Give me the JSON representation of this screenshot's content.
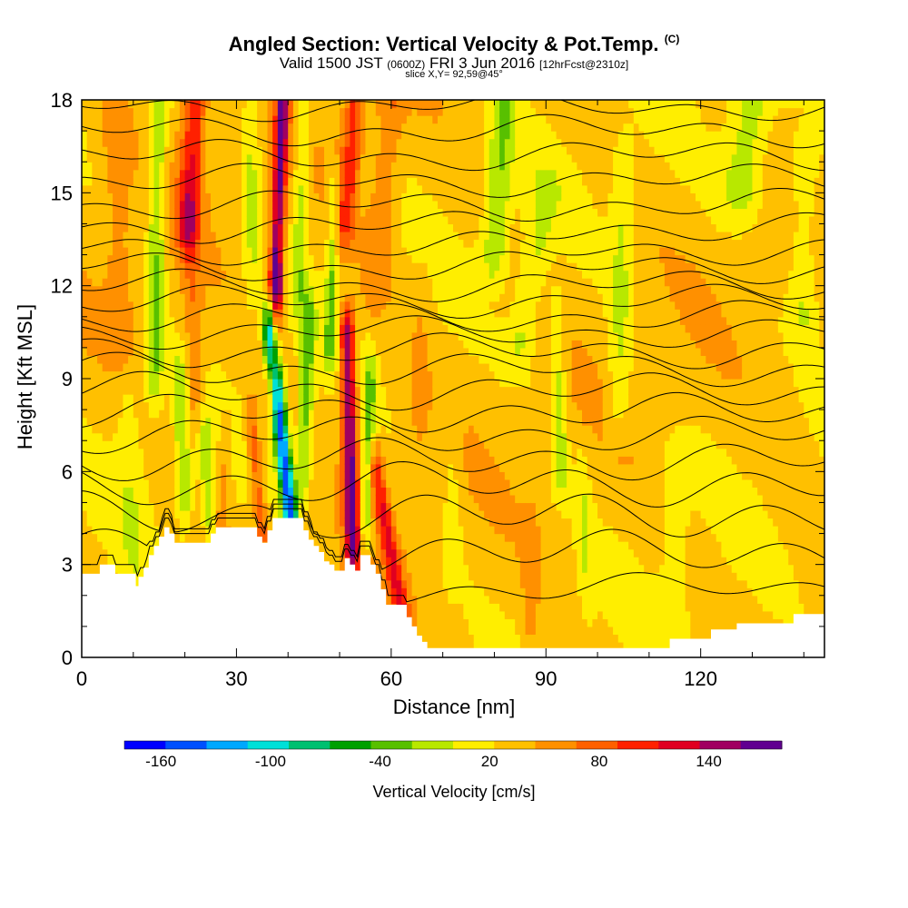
{
  "header": {
    "title_main": "Angled Section: Vertical Velocity & Pot.Temp.",
    "title_units": "(C)",
    "valid_prefix": "Valid 1500 JST",
    "valid_utc": "(0600Z)",
    "valid_date": "FRI 3 Jun 2016",
    "forecast_info": "[12hrFcst@2310z]",
    "slice_info": "slice X,Y= 92,59@45°"
  },
  "chart_data": {
    "type": "heatmap",
    "title": "Angled Section: Vertical Velocity & Pot.Temp.",
    "xlabel": "Distance [nm]",
    "ylabel": "Height [Kft MSL]",
    "xlim": [
      0,
      144
    ],
    "ylim": [
      0,
      18
    ],
    "x_ticks": [
      0,
      30,
      60,
      90,
      120
    ],
    "y_ticks": [
      0,
      3,
      6,
      9,
      12,
      15,
      18
    ],
    "colorbar": {
      "label": "Vertical Velocity [cm/s]",
      "range": [
        -180,
        180
      ],
      "step": 20,
      "tick_values": [
        -160,
        -100,
        -40,
        20,
        80,
        140
      ],
      "colors": [
        "#0000ff",
        "#0050ff",
        "#00a8ff",
        "#00e0d8",
        "#00c070",
        "#00a000",
        "#58c000",
        "#b8e800",
        "#ffee00",
        "#ffc000",
        "#ff9000",
        "#ff6000",
        "#ff2000",
        "#e00020",
        "#a00060",
        "#600090"
      ]
    },
    "terrain_kft": [
      {
        "x": 0,
        "h": 2.7
      },
      {
        "x": 3,
        "h": 2.7
      },
      {
        "x": 3.5,
        "h": 3.0
      },
      {
        "x": 6,
        "h": 3.0
      },
      {
        "x": 6.5,
        "h": 2.7
      },
      {
        "x": 10,
        "h": 2.7
      },
      {
        "x": 10.5,
        "h": 2.3
      },
      {
        "x": 11,
        "h": 2.6
      },
      {
        "x": 12,
        "h": 2.9
      },
      {
        "x": 13,
        "h": 3.3
      },
      {
        "x": 14,
        "h": 3.6
      },
      {
        "x": 15,
        "h": 3.9
      },
      {
        "x": 16,
        "h": 4.2
      },
      {
        "x": 17,
        "h": 4.0
      },
      {
        "x": 18,
        "h": 3.7
      },
      {
        "x": 24,
        "h": 3.7
      },
      {
        "x": 25,
        "h": 4.0
      },
      {
        "x": 26,
        "h": 4.2
      },
      {
        "x": 33,
        "h": 4.2
      },
      {
        "x": 34,
        "h": 3.9
      },
      {
        "x": 35,
        "h": 3.7
      },
      {
        "x": 36,
        "h": 4.1
      },
      {
        "x": 37,
        "h": 4.5
      },
      {
        "x": 42,
        "h": 4.5
      },
      {
        "x": 43,
        "h": 4.1
      },
      {
        "x": 44,
        "h": 3.8
      },
      {
        "x": 45,
        "h": 3.6
      },
      {
        "x": 46,
        "h": 3.4
      },
      {
        "x": 47,
        "h": 3.1
      },
      {
        "x": 48,
        "h": 3.0
      },
      {
        "x": 49,
        "h": 2.8
      },
      {
        "x": 50,
        "h": 2.8
      },
      {
        "x": 51,
        "h": 3.2
      },
      {
        "x": 52,
        "h": 3.0
      },
      {
        "x": 53,
        "h": 2.8
      },
      {
        "x": 54,
        "h": 3.3
      },
      {
        "x": 56,
        "h": 3.0
      },
      {
        "x": 57,
        "h": 2.7
      },
      {
        "x": 58,
        "h": 2.2
      },
      {
        "x": 59,
        "h": 1.7
      },
      {
        "x": 62,
        "h": 1.7
      },
      {
        "x": 63,
        "h": 1.3
      },
      {
        "x": 64,
        "h": 1.0
      },
      {
        "x": 65,
        "h": 0.7
      },
      {
        "x": 66,
        "h": 0.5
      },
      {
        "x": 67,
        "h": 0.3
      },
      {
        "x": 113,
        "h": 0.3
      },
      {
        "x": 114,
        "h": 0.6
      },
      {
        "x": 121,
        "h": 0.6
      },
      {
        "x": 122,
        "h": 0.9
      },
      {
        "x": 126,
        "h": 0.9
      },
      {
        "x": 127,
        "h": 1.1
      },
      {
        "x": 137,
        "h": 1.1
      },
      {
        "x": 138,
        "h": 1.4
      },
      {
        "x": 144,
        "h": 1.4
      }
    ],
    "velocity_features": [
      {
        "x_base": 40.5,
        "x_top": 36.5,
        "y0": 4.5,
        "y1": 10.5,
        "sigma": 1.0,
        "w": -160
      },
      {
        "x_base": 20.5,
        "x_top": 22,
        "y0": 14,
        "y1": 18,
        "sigma": 1.6,
        "w": 70
      },
      {
        "x_base": 22,
        "x_top": 21,
        "y0": 8,
        "y1": 14,
        "sigma": 1.3,
        "w": 30
      },
      {
        "x_base": 37.5,
        "x_top": 39,
        "y0": 12,
        "y1": 18,
        "sigma": 0.9,
        "w": 115
      },
      {
        "x_base": 37,
        "x_top": 38,
        "y0": 9,
        "y1": 12,
        "sigma": 0.8,
        "w": 60
      },
      {
        "x_base": 52.5,
        "x_top": 51.5,
        "y0": 3.5,
        "y1": 10.5,
        "sigma": 1.0,
        "w": 120
      },
      {
        "x_base": 51,
        "x_top": 53,
        "y0": 14,
        "y1": 18,
        "sigma": 1.4,
        "w": 60
      },
      {
        "x_base": 57,
        "x_top": 60,
        "y0": 12,
        "y1": 18,
        "sigma": 1.9,
        "w": 28
      },
      {
        "x_base": 62,
        "x_top": 57,
        "y0": 1.5,
        "y1": 6,
        "sigma": 1.1,
        "w": 70
      },
      {
        "x_base": 35,
        "x_top": 33,
        "y0": 4,
        "y1": 7.5,
        "sigma": 0.9,
        "w": 50
      },
      {
        "x_base": 27,
        "x_top": 28,
        "y0": 4,
        "y1": 7,
        "sigma": 1.0,
        "w": 25
      },
      {
        "x_base": 8,
        "x_top": 6,
        "y0": 10,
        "y1": 18,
        "sigma": 2.0,
        "w": 20
      },
      {
        "x_base": 14,
        "x_top": 15,
        "y0": 9,
        "y1": 18,
        "sigma": 1.2,
        "w": -50
      },
      {
        "x_base": 25,
        "x_top": 24,
        "y0": 4,
        "y1": 7,
        "sigma": 1.0,
        "w": -40
      },
      {
        "x_base": 20,
        "x_top": 19,
        "y0": 5,
        "y1": 9,
        "sigma": 1.0,
        "w": -45
      },
      {
        "x_base": 43,
        "x_top": 44,
        "y0": 6,
        "y1": 11,
        "sigma": 1.0,
        "w": -55
      },
      {
        "x_base": 48,
        "x_top": 49,
        "y0": 10,
        "y1": 15,
        "sigma": 0.8,
        "w": -45
      },
      {
        "x_base": 55,
        "x_top": 56,
        "y0": 4,
        "y1": 9,
        "sigma": 0.8,
        "w": -50
      },
      {
        "x_base": 42,
        "x_top": 43,
        "y0": 12,
        "y1": 18,
        "sigma": 1.0,
        "w": -40
      },
      {
        "x_base": 33,
        "x_top": 33,
        "y0": 12,
        "y1": 18,
        "sigma": 1.2,
        "w": -30
      },
      {
        "x_base": 80,
        "x_top": 82,
        "y0": 13,
        "y1": 18,
        "sigma": 1.8,
        "w": -45
      },
      {
        "x_base": 85,
        "x_top": 90,
        "y0": 10,
        "y1": 15,
        "sigma": 2.0,
        "w": -30
      },
      {
        "x_base": 93,
        "x_top": 92,
        "y0": 6,
        "y1": 11,
        "sigma": 1.0,
        "w": -40
      },
      {
        "x_base": 104,
        "x_top": 105,
        "y0": 8,
        "y1": 16,
        "sigma": 1.5,
        "w": -30
      },
      {
        "x_base": 128,
        "x_top": 130,
        "y0": 15,
        "y1": 18,
        "sigma": 3.0,
        "w": -40
      },
      {
        "x_base": 140,
        "x_top": 140,
        "y0": 11,
        "y1": 16,
        "sigma": 2.0,
        "w": -30
      },
      {
        "x_base": 72,
        "x_top": 72,
        "y0": 3,
        "y1": 7,
        "sigma": 1.2,
        "w": -20
      },
      {
        "x_base": 98,
        "x_top": 97,
        "y0": 2,
        "y1": 6,
        "sigma": 1.0,
        "w": -22
      },
      {
        "x_base": 115,
        "x_top": 115,
        "y0": 1,
        "y1": 6,
        "sigma": 2.0,
        "w": -18
      },
      {
        "x_base": 10,
        "x_top": 9,
        "y0": 3,
        "y1": 9,
        "sigma": 2.0,
        "w": -18
      },
      {
        "x_base": 87,
        "x_top": 87,
        "y0": 1,
        "y1": 4,
        "sigma": 1.0,
        "w": 22
      },
      {
        "x_base": 65,
        "x_top": 66,
        "y0": 7,
        "y1": 12,
        "sigma": 1.4,
        "w": 12
      }
    ],
    "theta_isentropes_kft": [
      {
        "base": 2.2,
        "amp": 0.3
      },
      {
        "base": 3.4,
        "amp": 0.5
      },
      {
        "base": 4.6,
        "amp": 0.55
      },
      {
        "base": 5.6,
        "amp": 0.5
      },
      {
        "base": 6.4,
        "amp": 0.45
      },
      {
        "base": 7.2,
        "amp": 0.4
      },
      {
        "base": 7.9,
        "amp": 0.4
      },
      {
        "base": 8.6,
        "amp": 0.38
      },
      {
        "base": 9.3,
        "amp": 0.35
      },
      {
        "base": 9.9,
        "amp": 0.33
      },
      {
        "base": 10.5,
        "amp": 0.3
      },
      {
        "base": 11.0,
        "amp": 0.3
      },
      {
        "base": 11.5,
        "amp": 0.3
      },
      {
        "base": 12.0,
        "amp": 0.3
      },
      {
        "base": 12.6,
        "amp": 0.3
      },
      {
        "base": 13.2,
        "amp": 0.3
      },
      {
        "base": 13.9,
        "amp": 0.3
      },
      {
        "base": 14.6,
        "amp": 0.3
      },
      {
        "base": 15.4,
        "amp": 0.3
      },
      {
        "base": 16.2,
        "amp": 0.3
      },
      {
        "base": 17.0,
        "amp": 0.3
      },
      {
        "base": 17.8,
        "amp": 0.25
      }
    ]
  }
}
